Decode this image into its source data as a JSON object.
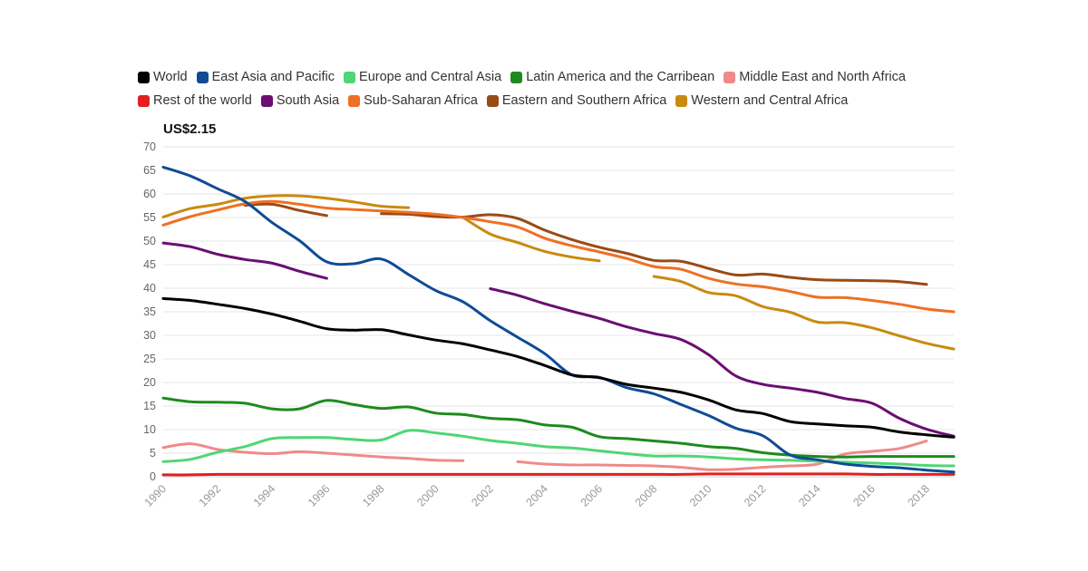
{
  "chart_data": {
    "type": "line",
    "unit_label": "US$2.15",
    "title": "",
    "xlabel": "",
    "ylabel": "",
    "xlim": [
      1990,
      2019
    ],
    "ylim": [
      0,
      70
    ],
    "grid": true,
    "y_ticks": [
      0,
      5,
      10,
      15,
      20,
      25,
      30,
      35,
      40,
      45,
      50,
      55,
      60,
      65,
      70
    ],
    "x_ticks": [
      1990,
      1992,
      1994,
      1996,
      1998,
      2000,
      2002,
      2004,
      2006,
      2008,
      2010,
      2012,
      2014,
      2016,
      2018
    ],
    "series": [
      {
        "name": "World",
        "color": "#000000",
        "points": [
          [
            1990,
            37.8
          ],
          [
            1991,
            37.4
          ],
          [
            1992,
            36.6
          ],
          [
            1993,
            35.7
          ],
          [
            1994,
            34.5
          ],
          [
            1995,
            33.0
          ],
          [
            1996,
            31.4
          ],
          [
            1997,
            31.1
          ],
          [
            1998,
            31.2
          ],
          [
            1999,
            30.1
          ],
          [
            2000,
            29.0
          ],
          [
            2001,
            28.2
          ],
          [
            2002,
            26.9
          ],
          [
            2003,
            25.5
          ],
          [
            2004,
            23.6
          ],
          [
            2005,
            21.6
          ],
          [
            2006,
            21.0
          ],
          [
            2007,
            19.6
          ],
          [
            2008,
            18.8
          ],
          [
            2009,
            17.9
          ],
          [
            2010,
            16.3
          ],
          [
            2011,
            14.2
          ],
          [
            2012,
            13.4
          ],
          [
            2013,
            11.7
          ],
          [
            2014,
            11.2
          ],
          [
            2015,
            10.8
          ],
          [
            2016,
            10.5
          ],
          [
            2017,
            9.5
          ],
          [
            2018,
            8.9
          ],
          [
            2019,
            8.4
          ]
        ]
      },
      {
        "name": "East Asia and Pacific",
        "color": "#0f4c96",
        "points": [
          [
            1990,
            65.7
          ],
          [
            1991,
            63.8
          ],
          [
            1992,
            61.1
          ],
          [
            1993,
            58.4
          ],
          [
            1994,
            53.9
          ],
          [
            1995,
            50.1
          ],
          [
            1996,
            45.6
          ],
          [
            1997,
            45.2
          ],
          [
            1998,
            46.2
          ],
          [
            1999,
            42.9
          ],
          [
            2000,
            39.5
          ],
          [
            2001,
            37.1
          ],
          [
            2002,
            33.1
          ],
          [
            2003,
            29.6
          ],
          [
            2004,
            26.1
          ],
          [
            2005,
            21.6
          ],
          [
            2006,
            21.1
          ],
          [
            2007,
            18.9
          ],
          [
            2008,
            17.6
          ],
          [
            2009,
            15.3
          ],
          [
            2010,
            13.0
          ],
          [
            2011,
            10.3
          ],
          [
            2012,
            8.7
          ],
          [
            2013,
            4.6
          ],
          [
            2014,
            3.6
          ],
          [
            2015,
            2.7
          ],
          [
            2016,
            2.2
          ],
          [
            2017,
            1.9
          ],
          [
            2018,
            1.4
          ],
          [
            2019,
            1.0
          ]
        ]
      },
      {
        "name": "Europe and Central Asia",
        "color": "#4fd675",
        "points": [
          [
            1990,
            3.2
          ],
          [
            1991,
            3.7
          ],
          [
            1992,
            5.2
          ],
          [
            1993,
            6.4
          ],
          [
            1994,
            8.1
          ],
          [
            1995,
            8.3
          ],
          [
            1996,
            8.3
          ],
          [
            1997,
            7.9
          ],
          [
            1998,
            7.8
          ],
          [
            1999,
            9.8
          ],
          [
            2000,
            9.3
          ],
          [
            2001,
            8.6
          ],
          [
            2002,
            7.7
          ],
          [
            2003,
            7.1
          ],
          [
            2004,
            6.4
          ],
          [
            2005,
            6.1
          ],
          [
            2006,
            5.5
          ],
          [
            2007,
            4.9
          ],
          [
            2008,
            4.4
          ],
          [
            2009,
            4.4
          ],
          [
            2010,
            4.2
          ],
          [
            2011,
            3.8
          ],
          [
            2012,
            3.6
          ],
          [
            2013,
            3.5
          ],
          [
            2014,
            3.3
          ],
          [
            2015,
            3.1
          ],
          [
            2016,
            2.9
          ],
          [
            2017,
            2.7
          ],
          [
            2018,
            2.4
          ],
          [
            2019,
            2.3
          ]
        ]
      },
      {
        "name": "Latin America and the Carribean",
        "color": "#1e8a1e",
        "points": [
          [
            1990,
            16.7
          ],
          [
            1991,
            15.9
          ],
          [
            1992,
            15.8
          ],
          [
            1993,
            15.6
          ],
          [
            1994,
            14.4
          ],
          [
            1995,
            14.4
          ],
          [
            1996,
            16.2
          ],
          [
            1997,
            15.3
          ],
          [
            1998,
            14.5
          ],
          [
            1999,
            14.8
          ],
          [
            2000,
            13.5
          ],
          [
            2001,
            13.2
          ],
          [
            2002,
            12.4
          ],
          [
            2003,
            12.1
          ],
          [
            2004,
            11.0
          ],
          [
            2005,
            10.5
          ],
          [
            2006,
            8.5
          ],
          [
            2007,
            8.1
          ],
          [
            2008,
            7.6
          ],
          [
            2009,
            7.1
          ],
          [
            2010,
            6.4
          ],
          [
            2011,
            6.0
          ],
          [
            2012,
            5.1
          ],
          [
            2013,
            4.6
          ],
          [
            2014,
            4.3
          ],
          [
            2015,
            4.2
          ],
          [
            2016,
            4.3
          ],
          [
            2017,
            4.3
          ],
          [
            2018,
            4.3
          ],
          [
            2019,
            4.3
          ]
        ]
      },
      {
        "name": "Middle East and North Africa",
        "color": "#ef8a8a",
        "segments": [
          [
            [
              1990,
              6.2
            ],
            [
              1991,
              7.0
            ],
            [
              1992,
              5.8
            ],
            [
              1993,
              5.2
            ],
            [
              1994,
              4.9
            ],
            [
              1995,
              5.3
            ],
            [
              1996,
              5.0
            ],
            [
              1997,
              4.6
            ],
            [
              1998,
              4.2
            ],
            [
              1999,
              3.9
            ],
            [
              2000,
              3.5
            ],
            [
              2001,
              3.4
            ]
          ],
          [
            [
              2003,
              3.2
            ],
            [
              2004,
              2.7
            ],
            [
              2005,
              2.5
            ],
            [
              2006,
              2.5
            ],
            [
              2007,
              2.4
            ],
            [
              2008,
              2.3
            ],
            [
              2009,
              2.0
            ],
            [
              2010,
              1.5
            ],
            [
              2011,
              1.6
            ],
            [
              2012,
              2.0
            ],
            [
              2013,
              2.3
            ],
            [
              2014,
              2.7
            ],
            [
              2015,
              4.8
            ],
            [
              2016,
              5.4
            ],
            [
              2017,
              6.0
            ],
            [
              2018,
              7.6
            ]
          ]
        ]
      },
      {
        "name": "Rest of the world",
        "color": "#e31f1f",
        "points": [
          [
            1990,
            0.4
          ],
          [
            1991,
            0.4
          ],
          [
            1992,
            0.5
          ],
          [
            1993,
            0.5
          ],
          [
            1994,
            0.5
          ],
          [
            1995,
            0.5
          ],
          [
            1996,
            0.5
          ],
          [
            1997,
            0.5
          ],
          [
            1998,
            0.5
          ],
          [
            1999,
            0.5
          ],
          [
            2000,
            0.5
          ],
          [
            2001,
            0.5
          ],
          [
            2002,
            0.5
          ],
          [
            2003,
            0.5
          ],
          [
            2004,
            0.5
          ],
          [
            2005,
            0.5
          ],
          [
            2006,
            0.5
          ],
          [
            2007,
            0.5
          ],
          [
            2008,
            0.5
          ],
          [
            2009,
            0.5
          ],
          [
            2010,
            0.6
          ],
          [
            2011,
            0.6
          ],
          [
            2012,
            0.6
          ],
          [
            2013,
            0.6
          ],
          [
            2014,
            0.6
          ],
          [
            2015,
            0.6
          ],
          [
            2016,
            0.5
          ],
          [
            2017,
            0.5
          ],
          [
            2018,
            0.5
          ],
          [
            2019,
            0.5
          ]
        ]
      },
      {
        "name": "South Asia",
        "color": "#6a0e72",
        "segments": [
          [
            [
              1990,
              49.6
            ],
            [
              1991,
              48.8
            ],
            [
              1992,
              47.2
            ],
            [
              1993,
              46.1
            ],
            [
              1994,
              45.3
            ],
            [
              1995,
              43.6
            ],
            [
              1996,
              42.1
            ]
          ],
          [
            [
              2002,
              39.9
            ],
            [
              2003,
              38.5
            ],
            [
              2004,
              36.7
            ],
            [
              2005,
              35.1
            ],
            [
              2006,
              33.6
            ],
            [
              2007,
              31.8
            ],
            [
              2008,
              30.4
            ],
            [
              2009,
              29.1
            ],
            [
              2010,
              25.9
            ],
            [
              2011,
              21.4
            ],
            [
              2012,
              19.6
            ],
            [
              2013,
              18.8
            ],
            [
              2014,
              17.9
            ],
            [
              2015,
              16.6
            ],
            [
              2016,
              15.6
            ],
            [
              2017,
              12.4
            ],
            [
              2018,
              10.1
            ],
            [
              2019,
              8.6
            ]
          ]
        ]
      },
      {
        "name": "Sub-Saharan Africa",
        "color": "#ee7024",
        "points": [
          [
            1990,
            53.4
          ],
          [
            1991,
            55.2
          ],
          [
            1992,
            56.6
          ],
          [
            1993,
            57.9
          ],
          [
            1994,
            58.4
          ],
          [
            1995,
            57.8
          ],
          [
            1996,
            57.0
          ],
          [
            1997,
            56.7
          ],
          [
            1998,
            56.4
          ],
          [
            1999,
            56.1
          ],
          [
            2000,
            55.7
          ],
          [
            2001,
            55.0
          ],
          [
            2002,
            54.1
          ],
          [
            2003,
            53.0
          ],
          [
            2004,
            50.6
          ],
          [
            2005,
            49.0
          ],
          [
            2006,
            47.7
          ],
          [
            2007,
            46.3
          ],
          [
            2008,
            44.6
          ],
          [
            2009,
            44.0
          ],
          [
            2010,
            42.1
          ],
          [
            2011,
            40.9
          ],
          [
            2012,
            40.3
          ],
          [
            2013,
            39.3
          ],
          [
            2014,
            38.1
          ],
          [
            2015,
            38.0
          ],
          [
            2016,
            37.4
          ],
          [
            2017,
            36.6
          ],
          [
            2018,
            35.6
          ],
          [
            2019,
            35.0
          ]
        ]
      },
      {
        "name": "Eastern and Southern Africa",
        "color": "#9a4a14",
        "segments": [
          [
            [
              1993,
              57.6
            ],
            [
              1994,
              57.8
            ],
            [
              1995,
              56.5
            ],
            [
              1996,
              55.4
            ]
          ],
          [
            [
              1998,
              55.8
            ],
            [
              1999,
              55.7
            ],
            [
              2000,
              55.2
            ],
            [
              2001,
              55.1
            ],
            [
              2002,
              55.6
            ],
            [
              2003,
              54.8
            ],
            [
              2004,
              52.3
            ],
            [
              2005,
              50.3
            ],
            [
              2006,
              48.7
            ],
            [
              2007,
              47.4
            ],
            [
              2008,
              45.9
            ],
            [
              2009,
              45.7
            ],
            [
              2010,
              44.2
            ],
            [
              2011,
              42.8
            ],
            [
              2012,
              43.0
            ],
            [
              2013,
              42.3
            ],
            [
              2014,
              41.8
            ],
            [
              2015,
              41.7
            ],
            [
              2016,
              41.6
            ],
            [
              2017,
              41.4
            ],
            [
              2018,
              40.8
            ]
          ]
        ]
      },
      {
        "name": "Western and Central Africa",
        "color": "#c98a10",
        "segments": [
          [
            [
              1990,
              55.1
            ],
            [
              1991,
              56.9
            ],
            [
              1992,
              57.8
            ],
            [
              1993,
              59.1
            ],
            [
              1994,
              59.6
            ],
            [
              1995,
              59.6
            ],
            [
              1996,
              59.1
            ],
            [
              1997,
              58.3
            ],
            [
              1998,
              57.4
            ],
            [
              1999,
              57.1
            ]
          ],
          [
            [
              2001,
              55.0
            ],
            [
              2002,
              51.5
            ],
            [
              2003,
              49.7
            ],
            [
              2004,
              47.8
            ],
            [
              2005,
              46.6
            ],
            [
              2006,
              45.8
            ]
          ],
          [
            [
              2008,
              42.5
            ],
            [
              2009,
              41.4
            ],
            [
              2010,
              39.1
            ],
            [
              2011,
              38.4
            ],
            [
              2012,
              36.1
            ],
            [
              2013,
              34.9
            ],
            [
              2014,
              32.8
            ],
            [
              2015,
              32.7
            ],
            [
              2016,
              31.6
            ],
            [
              2017,
              29.9
            ],
            [
              2018,
              28.3
            ],
            [
              2019,
              27.1
            ]
          ]
        ]
      }
    ]
  }
}
